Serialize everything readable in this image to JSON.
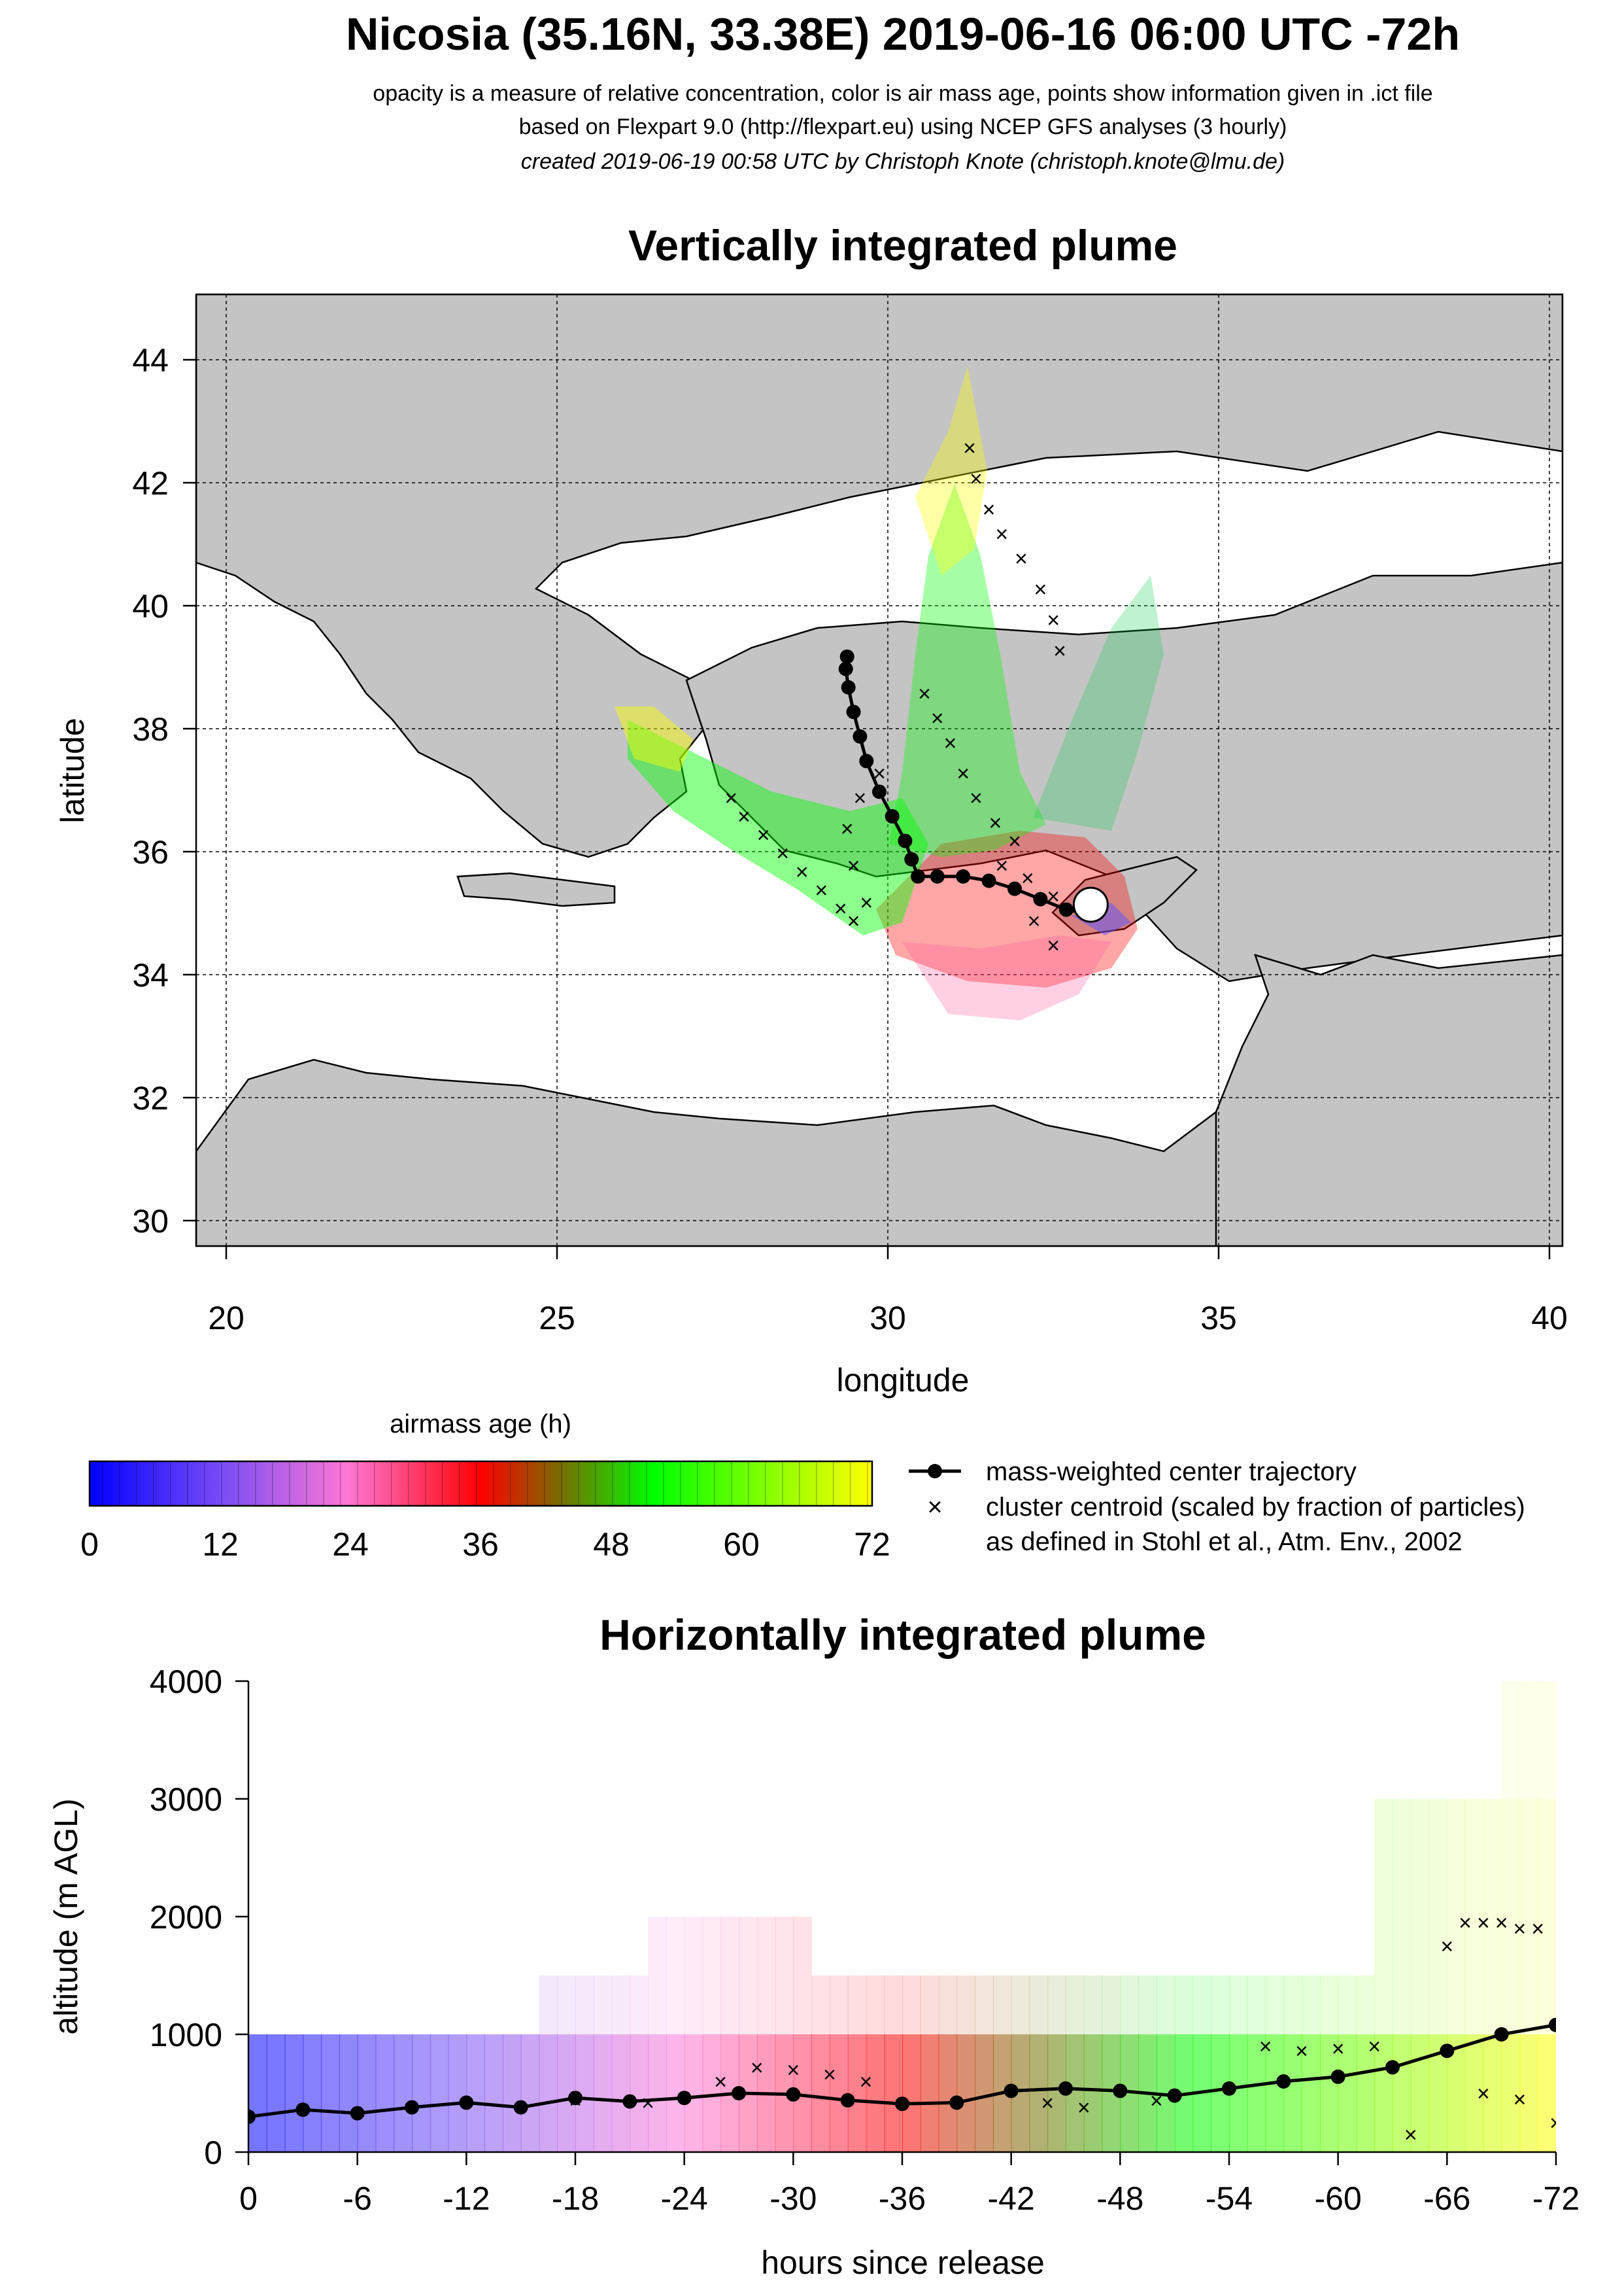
{
  "header": {
    "title": "Nicosia (35.16N, 33.38E) 2019-06-16 06:00 UTC -72h",
    "line1": "opacity is a measure of relative concentration, color is air mass age, points show information given in .ict file",
    "line2": "based on Flexpart 9.0 (http://flexpart.eu) using NCEP GFS analyses (3 hourly)",
    "line3": "created 2019-06-19 00:58 UTC by Christoph Knote (christoph.knote@lmu.de)"
  },
  "colors": {
    "age0": "#0000ff",
    "age24": "#ff66cc",
    "age36": "#ff0000",
    "age48": "#5a8a00",
    "age56": "#00ff00",
    "age72": "#ffff00",
    "center": "#000000",
    "land": "#c8c8c8",
    "sea": "#ffffff"
  },
  "chart_data": [
    {
      "type": "scatter",
      "title": "Vertically integrated plume",
      "xlabel": "longitude",
      "ylabel": "latitude",
      "xlim": [
        19.5,
        40.7
      ],
      "ylim": [
        29.6,
        45.1
      ],
      "xticks": [
        20,
        25,
        30,
        35,
        40
      ],
      "yticks": [
        30,
        32,
        34,
        36,
        38,
        40,
        42,
        44
      ],
      "grid": true,
      "release_point": {
        "lon": 33.38,
        "lat": 35.16
      },
      "center_trajectory": [
        [
          33.4,
          35.0
        ],
        [
          33.0,
          35.08
        ],
        [
          32.6,
          35.25
        ],
        [
          32.2,
          35.42
        ],
        [
          31.8,
          35.55
        ],
        [
          31.4,
          35.62
        ],
        [
          31.0,
          35.62
        ],
        [
          30.7,
          35.62
        ],
        [
          30.6,
          35.9
        ],
        [
          30.5,
          36.2
        ],
        [
          30.3,
          36.6
        ],
        [
          30.1,
          37.0
        ],
        [
          29.9,
          37.5
        ],
        [
          29.8,
          37.9
        ],
        [
          29.7,
          38.3
        ],
        [
          29.62,
          38.7
        ],
        [
          29.58,
          39.0
        ],
        [
          29.6,
          39.2
        ]
      ],
      "cluster_centroids": [
        [
          31.5,
          42.6
        ],
        [
          31.6,
          42.1
        ],
        [
          31.8,
          41.6
        ],
        [
          32.0,
          41.2
        ],
        [
          32.3,
          40.8
        ],
        [
          32.6,
          40.3
        ],
        [
          32.8,
          39.8
        ],
        [
          32.9,
          39.3
        ],
        [
          30.8,
          38.6
        ],
        [
          31.0,
          38.2
        ],
        [
          31.2,
          37.8
        ],
        [
          31.4,
          37.3
        ],
        [
          31.6,
          36.9
        ],
        [
          31.9,
          36.5
        ],
        [
          32.2,
          36.2
        ],
        [
          27.8,
          36.9
        ],
        [
          28.0,
          36.6
        ],
        [
          28.3,
          36.3
        ],
        [
          28.6,
          36.0
        ],
        [
          28.9,
          35.7
        ],
        [
          29.2,
          35.4
        ],
        [
          29.5,
          35.1
        ],
        [
          29.7,
          34.9
        ],
        [
          29.9,
          35.2
        ],
        [
          29.7,
          35.8
        ],
        [
          29.6,
          36.4
        ],
        [
          29.8,
          36.9
        ],
        [
          30.1,
          37.3
        ],
        [
          32.0,
          35.8
        ],
        [
          32.4,
          35.6
        ],
        [
          32.8,
          35.3
        ],
        [
          33.2,
          35.1
        ],
        [
          32.5,
          34.9
        ],
        [
          32.8,
          34.5
        ]
      ],
      "series": [
        {
          "name": "mass-weighted center trajectory"
        },
        {
          "name": "cluster centroid (scaled by fraction of particles)"
        }
      ]
    },
    {
      "type": "heatmap",
      "title": "Horizontally integrated plume",
      "xlabel": "hours since release",
      "ylabel": "altitude (m AGL)",
      "xlim": [
        0,
        -72
      ],
      "ylim": [
        0,
        4000
      ],
      "xticks": [
        0,
        -6,
        -12,
        -18,
        -24,
        -30,
        -36,
        -42,
        -48,
        -54,
        -60,
        -66,
        -72
      ],
      "xtick_labels": [
        "0",
        "-6",
        "-12",
        "-18",
        "-24",
        "-30",
        "-36",
        "-42",
        "-48",
        "-54",
        "-60",
        "-66",
        "-72"
      ],
      "yticks": [
        0,
        1000,
        2000,
        3000,
        4000
      ],
      "center_altitude": [
        [
          0,
          300
        ],
        [
          -3,
          360
        ],
        [
          -6,
          330
        ],
        [
          -9,
          380
        ],
        [
          -12,
          420
        ],
        [
          -15,
          380
        ],
        [
          -18,
          460
        ],
        [
          -21,
          430
        ],
        [
          -24,
          460
        ],
        [
          -27,
          500
        ],
        [
          -30,
          490
        ],
        [
          -33,
          440
        ],
        [
          -36,
          410
        ],
        [
          -39,
          420
        ],
        [
          -42,
          520
        ],
        [
          -45,
          540
        ],
        [
          -48,
          520
        ],
        [
          -51,
          480
        ],
        [
          -54,
          540
        ],
        [
          -57,
          600
        ],
        [
          -60,
          640
        ],
        [
          -63,
          720
        ],
        [
          -66,
          860
        ],
        [
          -69,
          1000
        ],
        [
          -72,
          1080
        ]
      ],
      "cluster_centroids": [
        [
          -18,
          440
        ],
        [
          -22,
          420
        ],
        [
          -26,
          600
        ],
        [
          -28,
          720
        ],
        [
          -30,
          700
        ],
        [
          -32,
          660
        ],
        [
          -34,
          600
        ],
        [
          -44,
          420
        ],
        [
          -46,
          380
        ],
        [
          -50,
          440
        ],
        [
          -56,
          900
        ],
        [
          -58,
          860
        ],
        [
          -60,
          880
        ],
        [
          -62,
          900
        ],
        [
          -64,
          150
        ],
        [
          -66,
          1750
        ],
        [
          -67,
          1950
        ],
        [
          -68,
          1950
        ],
        [
          -69,
          1950
        ],
        [
          -70,
          1900
        ],
        [
          -71,
          1900
        ],
        [
          -68,
          500
        ],
        [
          -70,
          450
        ],
        [
          -72,
          250
        ]
      ]
    }
  ],
  "legend": {
    "colorbar_title": "airmass age (h)",
    "colorbar_ticks": [
      "0",
      "12",
      "24",
      "36",
      "48",
      "60",
      "72"
    ],
    "entries": [
      "mass-weighted center trajectory",
      "cluster centroid (scaled by fraction of particles)",
      "as defined in Stohl et al., Atm. Env., 2002"
    ]
  }
}
